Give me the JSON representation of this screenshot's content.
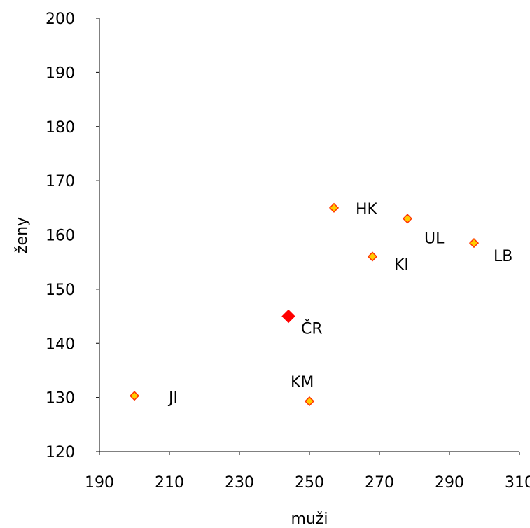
{
  "chart_data": {
    "type": "scatter",
    "xlabel": "muži",
    "ylabel": "ženy",
    "xlim": [
      190,
      310
    ],
    "ylim": [
      120,
      200
    ],
    "x_ticks": [
      190,
      210,
      230,
      250,
      270,
      290,
      310
    ],
    "y_ticks": [
      120,
      130,
      140,
      150,
      160,
      170,
      180,
      190,
      200
    ],
    "grid": false,
    "legend": "none",
    "marker": "diamond",
    "colors": {
      "marker_fill": "#ffcc00",
      "marker_stroke": "#ff3300",
      "highlight_fill": "#ff0000"
    },
    "points": [
      {
        "label": "HK",
        "x": 257,
        "y": 165,
        "highlight": false
      },
      {
        "label": "UL",
        "x": 278,
        "y": 163,
        "highlight": false
      },
      {
        "label": "LB",
        "x": 297,
        "y": 158.5,
        "highlight": false
      },
      {
        "label": "KI",
        "x": 268,
        "y": 156,
        "highlight": false
      },
      {
        "label": "ČR",
        "x": 244,
        "y": 145,
        "highlight": true
      },
      {
        "label": "JI",
        "x": 200,
        "y": 130.3,
        "highlight": false
      },
      {
        "label": "KM",
        "x": 250,
        "y": 129.3,
        "highlight": false
      }
    ]
  }
}
